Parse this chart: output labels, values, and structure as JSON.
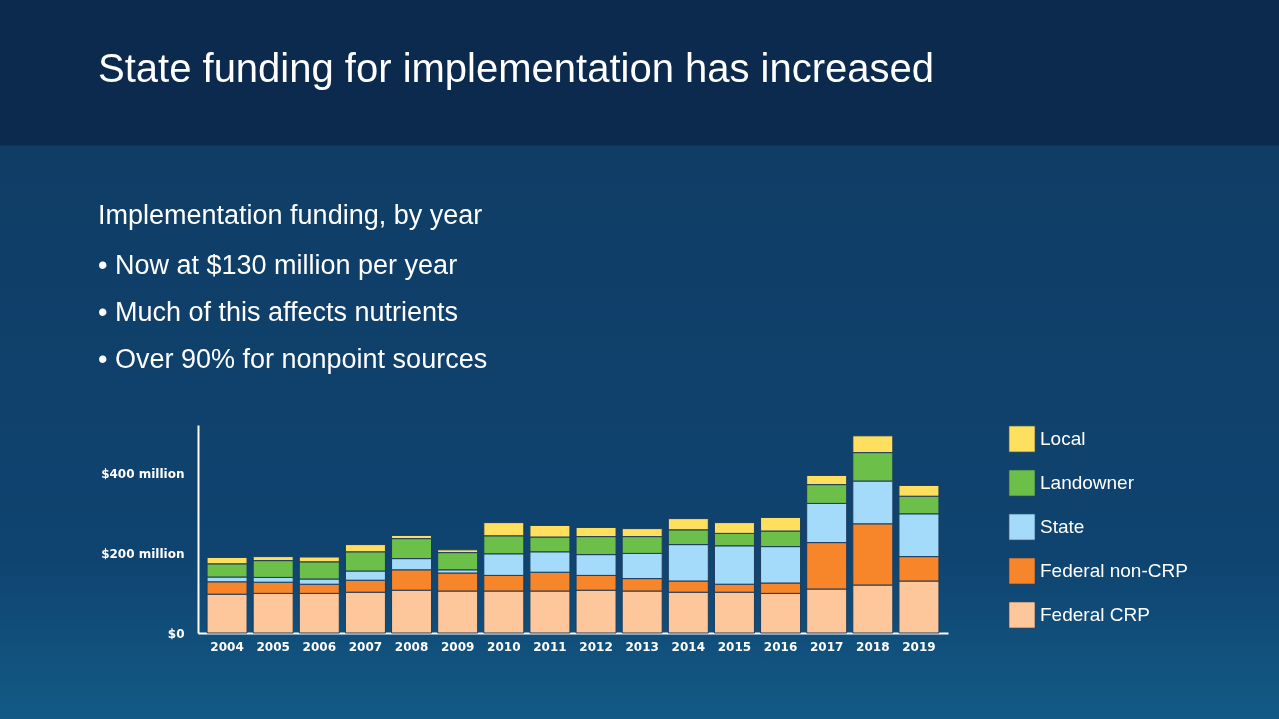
{
  "chart_data": {
    "type": "bar",
    "title": "State funding for implementation has increased",
    "subtitle": "Implementation funding, by year",
    "annotations": [
      "• Now at $130 million per year",
      "• Much of this affects nutrients",
      "• Over 90% for nonpoint sources"
    ],
    "categories": [
      "2004",
      "2005",
      "2006",
      "2007",
      "2008",
      "2009",
      "2010",
      "2011",
      "2012",
      "2013",
      "2014",
      "2015",
      "2016",
      "2017",
      "2018",
      "2019"
    ],
    "stacked": true,
    "series": [
      {
        "name": "Federal CRP",
        "color": "#fdc79b",
        "values": [
          97,
          99,
          99,
          102,
          107,
          105,
          105,
          105,
          107,
          105,
          102,
          102,
          99,
          110,
          120,
          130
        ]
      },
      {
        "name": "Federal non-CRP",
        "color": "#f7862a",
        "values": [
          31,
          28,
          23,
          30,
          51,
          45,
          39,
          47,
          37,
          31,
          28,
          20,
          26,
          116,
          153,
          61
        ]
      },
      {
        "name": "State",
        "color": "#a4dbfb",
        "values": [
          12,
          12,
          13,
          23,
          28,
          8,
          54,
          51,
          52,
          63,
          91,
          96,
          91,
          98,
          107,
          107
        ]
      },
      {
        "name": "Landowner",
        "color": "#6cc04a",
        "values": [
          33,
          42,
          43,
          48,
          50,
          43,
          45,
          37,
          45,
          42,
          37,
          31,
          39,
          47,
          71,
          44
        ]
      },
      {
        "name": "Local",
        "color": "#fedf5e",
        "values": [
          16,
          10,
          12,
          18,
          8,
          7,
          33,
          29,
          23,
          20,
          28,
          27,
          34,
          23,
          42,
          27
        ]
      }
    ],
    "ylim": [
      0,
      520
    ],
    "yticks": [
      {
        "value": 0,
        "label": "$0"
      },
      {
        "value": 200,
        "label": "$200 million"
      },
      {
        "value": 400,
        "label": "$400 million"
      }
    ],
    "legend": "right"
  }
}
